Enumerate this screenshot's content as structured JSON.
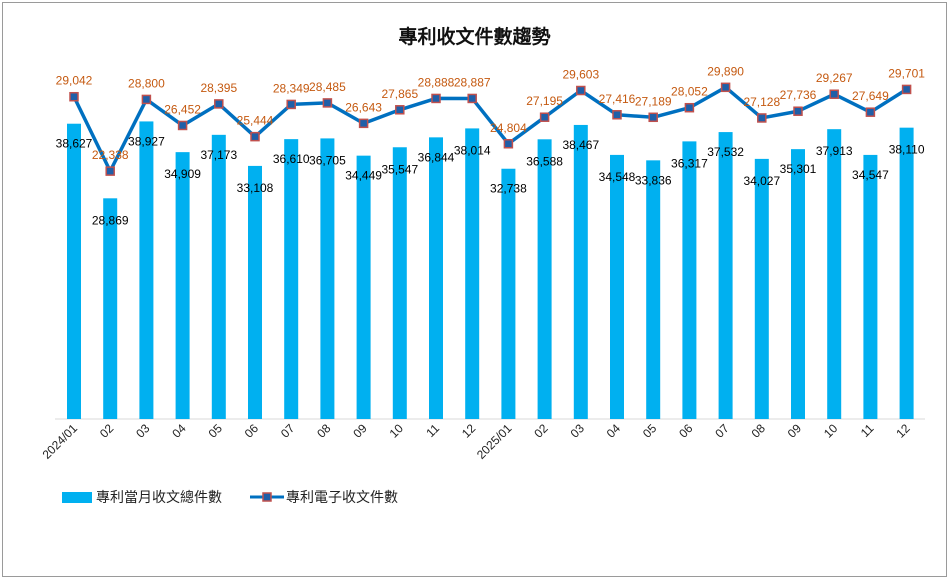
{
  "chart_data": {
    "type": "bar+line",
    "title": "專利收文件數趨勢",
    "categories": [
      "2024/01",
      "02",
      "03",
      "04",
      "05",
      "06",
      "07",
      "08",
      "09",
      "10",
      "11",
      "12",
      "2025/01",
      "02",
      "03",
      "04",
      "05",
      "06",
      "07",
      "08",
      "09",
      "10",
      "11",
      "12"
    ],
    "series": [
      {
        "name": "專利當月收文總件數",
        "type": "bar",
        "axis": "primary",
        "color": "#00B0F0",
        "labelColor": "#000000",
        "values": [
          38627,
          28869,
          38927,
          34909,
          37173,
          33108,
          36610,
          36705,
          34449,
          35547,
          36844,
          38014,
          32738,
          36588,
          38467,
          34548,
          33836,
          36317,
          37532,
          34027,
          35301,
          37913,
          34547,
          38110
        ]
      },
      {
        "name": "專利電子收文件數",
        "type": "line",
        "axis": "secondary",
        "color": "#0070C0",
        "markerColor": "#C0504D",
        "labelColor": "#C55A11",
        "values": [
          29042,
          22338,
          28800,
          26452,
          28395,
          25444,
          28349,
          28485,
          26643,
          27865,
          28888,
          28887,
          24804,
          27195,
          29603,
          27416,
          27189,
          28052,
          29890,
          27128,
          27736,
          29267,
          27649,
          29701
        ]
      }
    ],
    "ylim": [
      0,
      45000
    ],
    "y2lim": [
      0,
      31000
    ],
    "grid": false,
    "legend": "bottom-left"
  }
}
